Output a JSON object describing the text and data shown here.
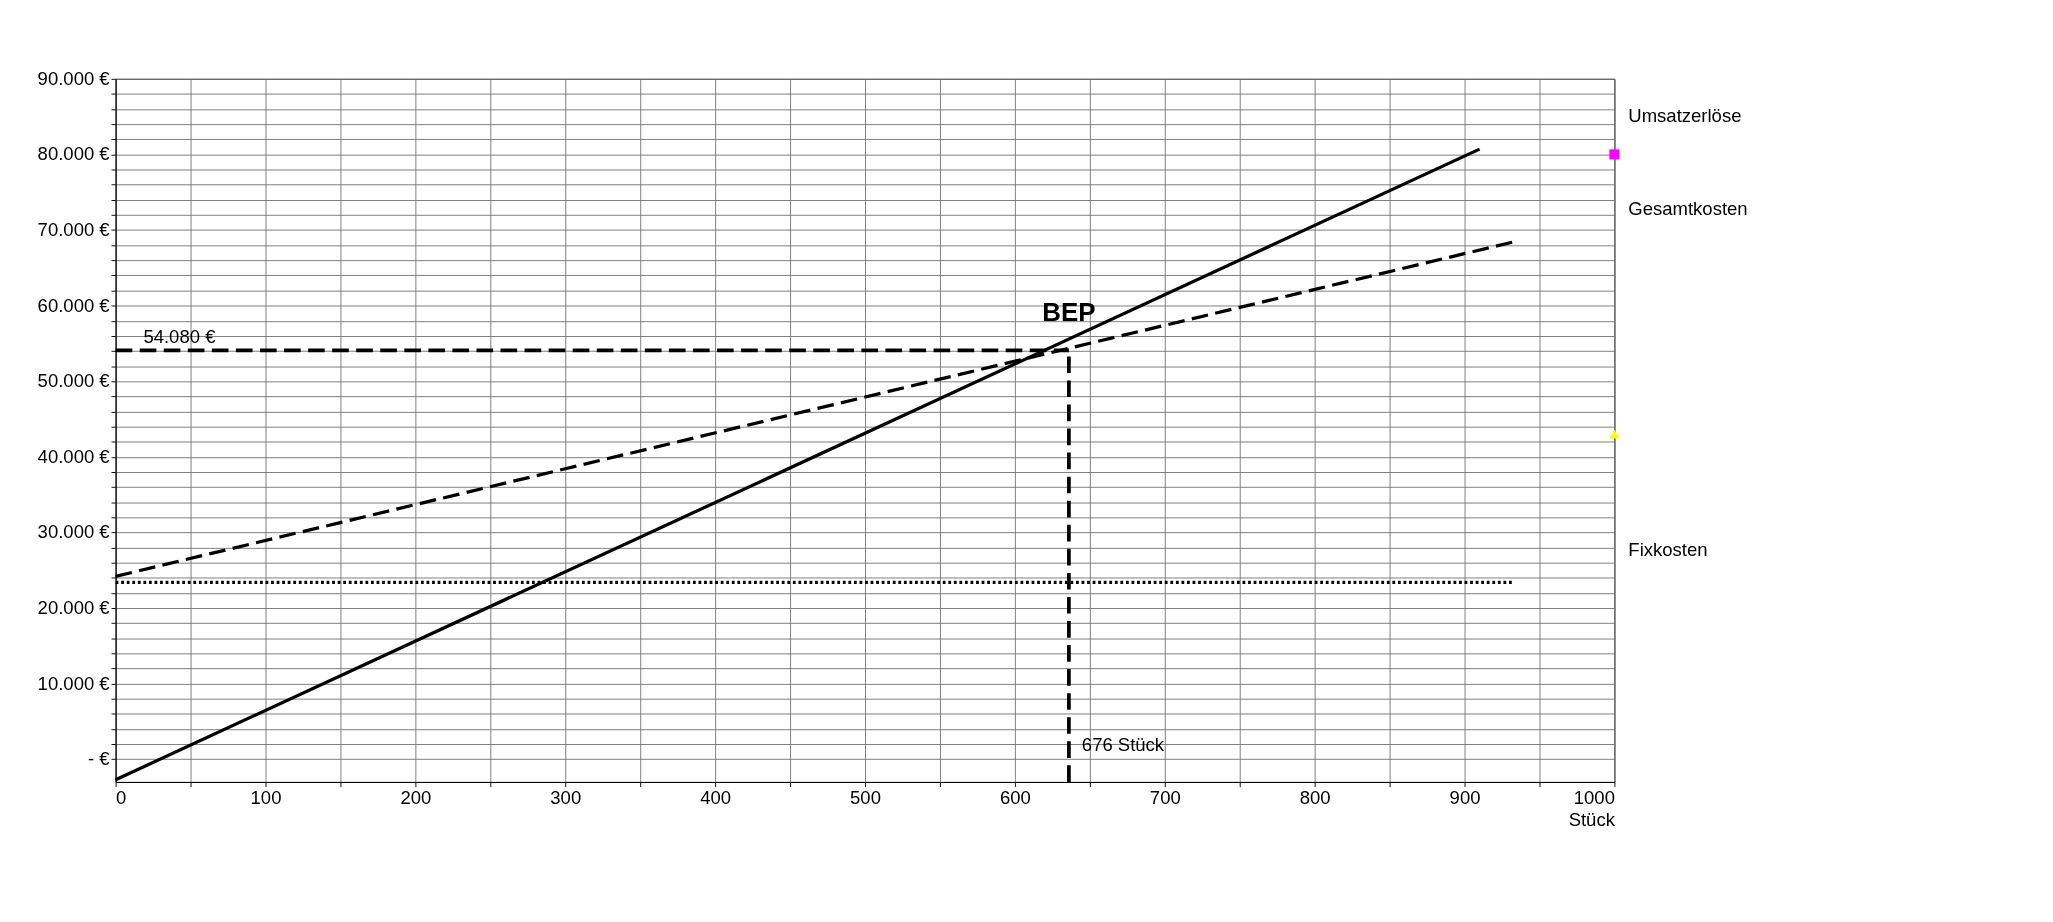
{
  "chart_data": {
    "type": "line",
    "xlabel": "Stück",
    "xlim": [
      0,
      1000
    ],
    "ylim": [
      -3000,
      90000
    ],
    "xticks": [
      0,
      {
        "value": 50,
        "label": null
      },
      100,
      {
        "value": 150,
        "label": null
      },
      200,
      {
        "value": 250,
        "label": null
      },
      300,
      {
        "value": 350,
        "label": null
      },
      400,
      {
        "value": 450,
        "label": null
      },
      500,
      {
        "value": 550,
        "label": null
      },
      600,
      {
        "value": 650,
        "label": null
      },
      700,
      {
        "value": 750,
        "label": null
      },
      800,
      {
        "value": 850,
        "label": null
      },
      900,
      {
        "value": 950,
        "label": null
      },
      1000
    ],
    "yticks": [
      {
        "value": 0,
        "label": "-     €"
      },
      {
        "value": 2000,
        "label": null
      },
      {
        "value": 4000,
        "label": null
      },
      {
        "value": 6000,
        "label": null
      },
      {
        "value": 8000,
        "label": null
      },
      {
        "value": 10000,
        "label": "10.000 €"
      },
      {
        "value": 12000,
        "label": null
      },
      {
        "value": 14000,
        "label": null
      },
      {
        "value": 16000,
        "label": null
      },
      {
        "value": 18000,
        "label": null
      },
      {
        "value": 20000,
        "label": "20.000 €"
      },
      {
        "value": 22000,
        "label": null
      },
      {
        "value": 24000,
        "label": null
      },
      {
        "value": 26000,
        "label": null
      },
      {
        "value": 28000,
        "label": null
      },
      {
        "value": 30000,
        "label": "30.000 €"
      },
      {
        "value": 32000,
        "label": null
      },
      {
        "value": 34000,
        "label": null
      },
      {
        "value": 36000,
        "label": null
      },
      {
        "value": 38000,
        "label": null
      },
      {
        "value": 40000,
        "label": "40.000 €"
      },
      {
        "value": 42000,
        "label": null
      },
      {
        "value": 44000,
        "label": null
      },
      {
        "value": 46000,
        "label": null
      },
      {
        "value": 48000,
        "label": null
      },
      {
        "value": 50000,
        "label": "50.000 €"
      },
      {
        "value": 52000,
        "label": null
      },
      {
        "value": 54000,
        "label": null
      },
      {
        "value": 56000,
        "label": null
      },
      {
        "value": 58000,
        "label": null
      },
      {
        "value": 60000,
        "label": "60.000 €"
      },
      {
        "value": 62000,
        "label": null
      },
      {
        "value": 64000,
        "label": null
      },
      {
        "value": 66000,
        "label": null
      },
      {
        "value": 68000,
        "label": null
      },
      {
        "value": 70000,
        "label": "70.000 €"
      },
      {
        "value": 72000,
        "label": null
      },
      {
        "value": 74000,
        "label": null
      },
      {
        "value": 76000,
        "label": null
      },
      {
        "value": 78000,
        "label": null
      },
      {
        "value": 80000,
        "label": "80.000 €"
      },
      {
        "value": 82000,
        "label": null
      },
      {
        "value": 84000,
        "label": null
      },
      {
        "value": 86000,
        "label": null
      },
      {
        "value": 88000,
        "label": null
      },
      {
        "value": 90000,
        "label": "90.000 €"
      }
    ],
    "grid": true,
    "series": [
      {
        "name": "Umsatzerlöse",
        "line_style": "solid",
        "color": "#000000",
        "x": [
          0,
          910
        ],
        "values": [
          -2700,
          80700
        ]
      },
      {
        "name": "Gesamtkosten",
        "line_style": "dashed",
        "color": "#000000",
        "x": [
          0,
          932
        ],
        "values": [
          24200,
          68400
        ]
      },
      {
        "name": "Fixkosten",
        "line_style": "dotted",
        "color": "#000000",
        "x": [
          0,
          932
        ],
        "values": [
          23400,
          23400
        ]
      },
      {
        "type": "scatter",
        "marker": "square",
        "color": "#ff00ff",
        "x": [
          1000
        ],
        "values": [
          80000
        ]
      },
      {
        "type": "scatter",
        "marker": "triangle",
        "color": "#ffff00",
        "x": [
          1000
        ],
        "values": [
          43000
        ]
      }
    ],
    "ref_lines": [
      {
        "axis": "y",
        "value": 54080,
        "label": "54.080 €",
        "line_style": "dashed",
        "color": "#000000"
      },
      {
        "axis": "x",
        "value": 636,
        "label": "676 Stück",
        "line_style": "dashed",
        "color": "#000000"
      }
    ],
    "annotations": [
      {
        "text": "BEP",
        "x": 636,
        "y": 54080
      }
    ]
  }
}
